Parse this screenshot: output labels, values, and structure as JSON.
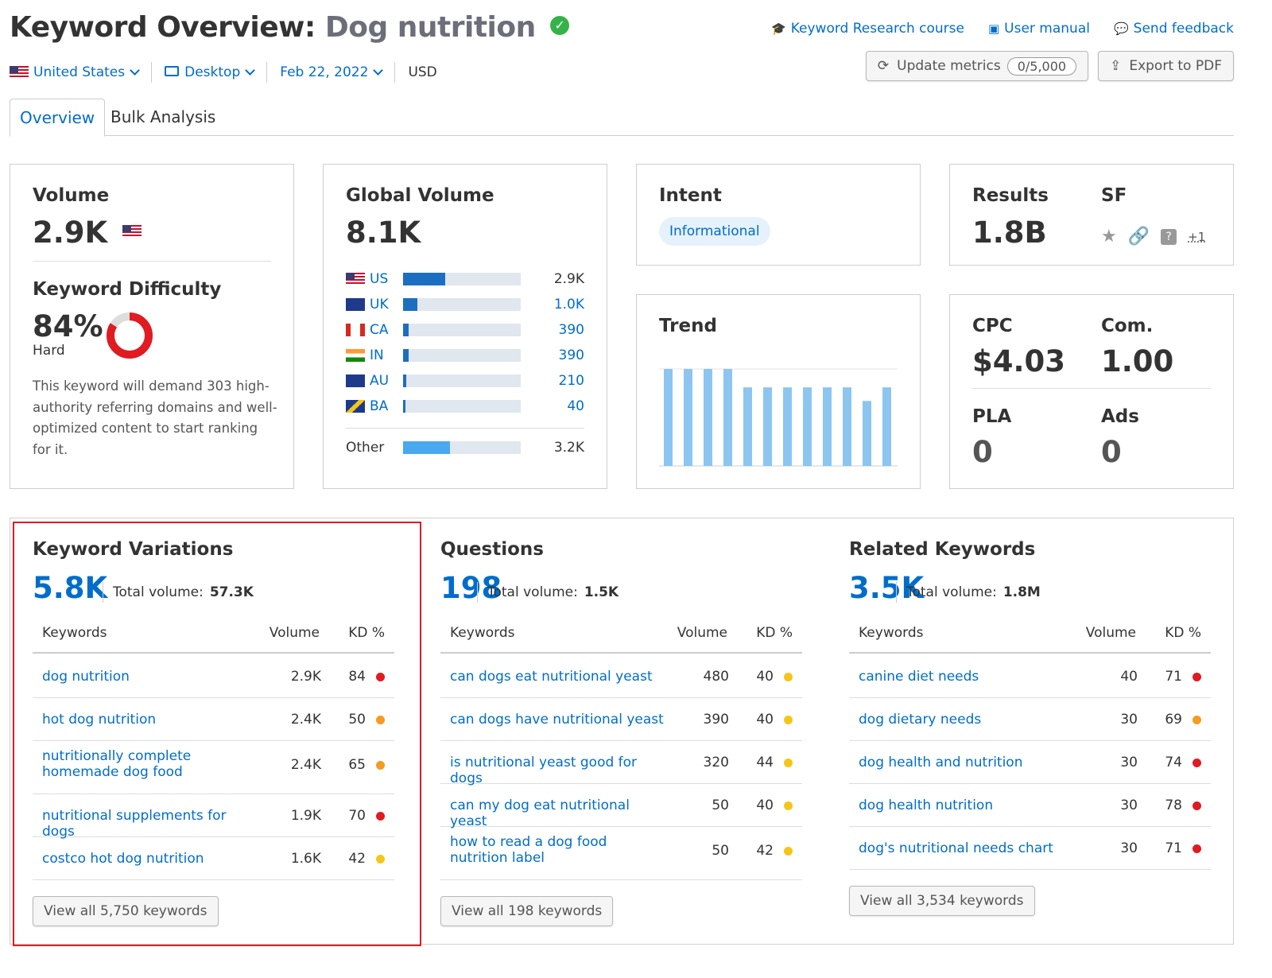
{
  "header": {
    "title_prefix": "Keyword Overview:",
    "keyword": "Dog nutrition",
    "links": [
      {
        "icon": "graduation-cap-icon",
        "label": "Keyword Research course"
      },
      {
        "icon": "book-icon",
        "label": "User manual"
      },
      {
        "icon": "speech-bubble-icon",
        "label": "Send feedback"
      }
    ],
    "filters": {
      "country": "United States",
      "device": "Desktop",
      "date": "Feb 22, 2022",
      "currency": "USD"
    },
    "update_label": "Update metrics",
    "update_count": "0/5,000",
    "export_label": "Export to PDF"
  },
  "tabs": [
    "Overview",
    "Bulk Analysis"
  ],
  "volume": {
    "title": "Volume",
    "value": "2.9K",
    "kd_title": "Keyword Difficulty",
    "kd_value": "84%",
    "kd_level": "Hard",
    "kd_percent": 84,
    "kd_color": "#e01b22",
    "description": "This keyword will demand 303 high-authority referring domains and well-optimized content to start ranking for it."
  },
  "global_volume": {
    "title": "Global Volume",
    "value": "8.1K",
    "countries": [
      {
        "code": "US",
        "value": "2.9K",
        "fraction": 0.36
      },
      {
        "code": "UK",
        "value": "1.0K",
        "fraction": 0.12
      },
      {
        "code": "CA",
        "value": "390",
        "fraction": 0.05
      },
      {
        "code": "IN",
        "value": "390",
        "fraction": 0.05
      },
      {
        "code": "AU",
        "value": "210",
        "fraction": 0.03
      },
      {
        "code": "BA",
        "value": "40",
        "fraction": 0.02
      }
    ],
    "other_label": "Other",
    "other_value": "3.2K",
    "other_fraction": 0.4
  },
  "intent": {
    "title": "Intent",
    "badge": "Informational"
  },
  "results": {
    "title": "Results",
    "value": "1.8B",
    "sf_title": "SF",
    "sf_icons": [
      "star-icon",
      "link-icon",
      "question-icon"
    ],
    "sf_more": "+1"
  },
  "trend": {
    "title": "Trend",
    "values": [
      1.0,
      1.0,
      1.0,
      1.0,
      0.81,
      0.81,
      0.81,
      0.81,
      0.81,
      0.81,
      0.67,
      0.81
    ]
  },
  "cpc": {
    "cpc_label": "CPC",
    "cpc_value": "$4.03",
    "com_label": "Com.",
    "com_value": "1.00",
    "pla_label": "PLA",
    "pla_value": "0",
    "ads_label": "Ads",
    "ads_value": "0"
  },
  "columns": {
    "keywords": "Keywords",
    "volume": "Volume",
    "kd": "KD %"
  },
  "sections": [
    {
      "title": "Keyword Variations",
      "count": "5.8K",
      "total_label": "Total volume:",
      "total_value": "57.3K",
      "rows": [
        {
          "keyword": "dog nutrition",
          "volume": "2.9K",
          "kd": "84",
          "dot": "#e01b22"
        },
        {
          "keyword": "hot dog nutrition",
          "volume": "2.4K",
          "kd": "50",
          "dot": "#f59a23"
        },
        {
          "keyword": "nutritionally complete homemade dog food",
          "volume": "2.4K",
          "kd": "65",
          "dot": "#f59a23"
        },
        {
          "keyword": "nutritional supplements for dogs",
          "volume": "1.9K",
          "kd": "70",
          "dot": "#e01b22"
        },
        {
          "keyword": "costco hot dog nutrition",
          "volume": "1.6K",
          "kd": "42",
          "dot": "#f5c518"
        }
      ],
      "view_all": "View all 5,750 keywords"
    },
    {
      "title": "Questions",
      "count": "198",
      "total_label": "Total volume:",
      "total_value": "1.5K",
      "rows": [
        {
          "keyword": "can dogs eat nutritional yeast",
          "volume": "480",
          "kd": "40",
          "dot": "#f5c518"
        },
        {
          "keyword": "can dogs have nutritional yeast",
          "volume": "390",
          "kd": "40",
          "dot": "#f5c518"
        },
        {
          "keyword": "is nutritional yeast good for dogs",
          "volume": "320",
          "kd": "44",
          "dot": "#f5c518"
        },
        {
          "keyword": "can my dog eat nutritional yeast",
          "volume": "50",
          "kd": "40",
          "dot": "#f5c518"
        },
        {
          "keyword": "how to read a dog food nutrition label",
          "volume": "50",
          "kd": "42",
          "dot": "#f5c518"
        }
      ],
      "view_all": "View all 198 keywords"
    },
    {
      "title": "Related Keywords",
      "count": "3.5K",
      "total_label": "Total volume:",
      "total_value": "1.8M",
      "rows": [
        {
          "keyword": "canine diet needs",
          "volume": "40",
          "kd": "71",
          "dot": "#e01b22"
        },
        {
          "keyword": "dog dietary needs",
          "volume": "30",
          "kd": "69",
          "dot": "#f59a23"
        },
        {
          "keyword": "dog health and nutrition",
          "volume": "30",
          "kd": "74",
          "dot": "#e01b22"
        },
        {
          "keyword": "dog health nutrition",
          "volume": "30",
          "kd": "78",
          "dot": "#e01b22"
        },
        {
          "keyword": "dog's nutritional needs chart",
          "volume": "30",
          "kd": "71",
          "dot": "#e01b22"
        }
      ],
      "view_all": "View all 3,534 keywords"
    }
  ]
}
